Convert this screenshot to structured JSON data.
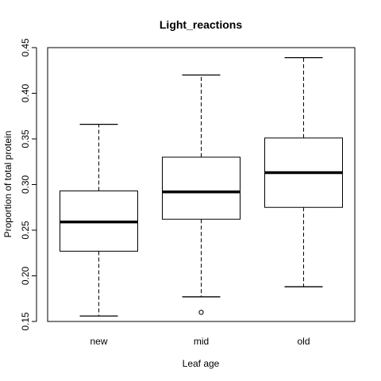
{
  "chart_data": {
    "type": "box",
    "title": "Light_reactions",
    "xlabel": "Leaf age",
    "ylabel": "Proportion of total protein",
    "ylim": [
      0.15,
      0.45
    ],
    "yticks": [
      "0.15",
      "0.20",
      "0.25",
      "0.30",
      "0.35",
      "0.40",
      "0.45"
    ],
    "categories": [
      "new",
      "mid",
      "old"
    ],
    "boxes": [
      {
        "category": "new",
        "whisker_low": 0.156,
        "q1": 0.227,
        "median": 0.259,
        "q3": 0.293,
        "whisker_high": 0.366,
        "outliers": []
      },
      {
        "category": "mid",
        "whisker_low": 0.177,
        "q1": 0.262,
        "median": 0.292,
        "q3": 0.33,
        "whisker_high": 0.42,
        "outliers": [
          0.16
        ]
      },
      {
        "category": "old",
        "whisker_low": 0.188,
        "q1": 0.275,
        "median": 0.313,
        "q3": 0.351,
        "whisker_high": 0.439,
        "outliers": []
      }
    ],
    "grid": false,
    "colors": {
      "line": "#000000",
      "box_fill": "#ffffff",
      "background": "#ffffff"
    }
  }
}
